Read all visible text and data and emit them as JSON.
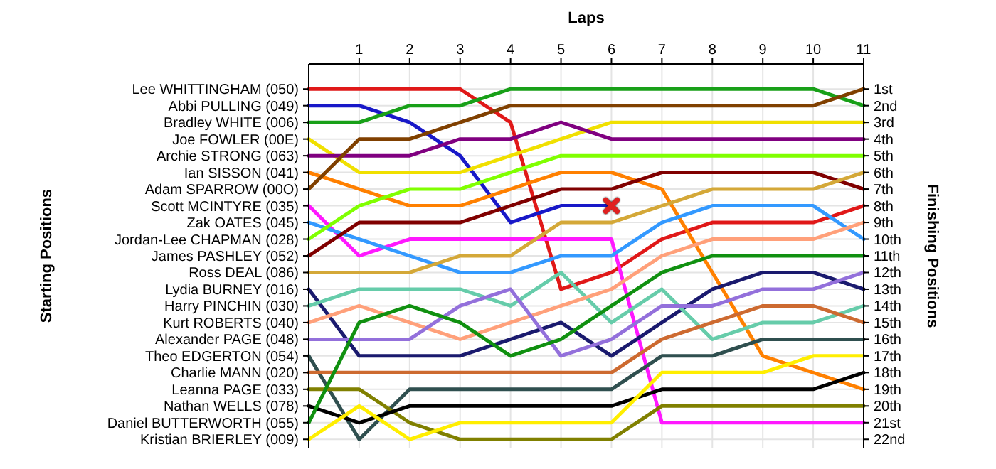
{
  "chart_data": {
    "type": "line",
    "xlabel": "Laps",
    "ylabel": "Finishing Positions",
    "x": [
      0,
      1,
      2,
      3,
      4,
      5,
      6,
      7,
      8,
      9,
      10,
      11
    ],
    "xlim": [
      0,
      11
    ],
    "xticks": [
      1,
      2,
      3,
      4,
      5,
      6,
      7,
      8,
      9,
      10,
      11
    ],
    "ylim": [
      22.5,
      -0.5
    ],
    "yticks": [
      {
        "value": 1,
        "label": "1st"
      },
      {
        "value": 2,
        "label": "2nd"
      },
      {
        "value": 3,
        "label": "3rd"
      },
      {
        "value": 4,
        "label": "4th"
      },
      {
        "value": 5,
        "label": "5th"
      },
      {
        "value": 6,
        "label": "6th"
      },
      {
        "value": 7,
        "label": "7th"
      },
      {
        "value": 8,
        "label": "8th"
      },
      {
        "value": 9,
        "label": "9th"
      },
      {
        "value": 10,
        "label": "10th"
      },
      {
        "value": 11,
        "label": "11th"
      },
      {
        "value": 12,
        "label": "12th"
      },
      {
        "value": 13,
        "label": "13th"
      },
      {
        "value": 14,
        "label": "14th"
      },
      {
        "value": 15,
        "label": "15th"
      },
      {
        "value": 16,
        "label": "16th"
      },
      {
        "value": 17,
        "label": "17th"
      },
      {
        "value": 18,
        "label": "18th"
      },
      {
        "value": 19,
        "label": "19th"
      },
      {
        "value": 20,
        "label": "20th"
      },
      {
        "value": 21,
        "label": "21st"
      },
      {
        "value": 22,
        "label": "22nd"
      }
    ],
    "annotations": [
      "Starting Positions",
      "Lee WHITTINGHAM (050)",
      "Abbi PULLING (049)",
      "Bradley WHITE (006)",
      "Joe FOWLER (00E)",
      "Archie STRONG (063)",
      "Ian SISSON (041)",
      "Adam SPARROW (00O)",
      "Scott MCINTYRE (035)",
      "Zak OATES (045)",
      "Jordan-Lee CHAPMAN (028)",
      "James PASHLEY (052)",
      "Ross DEAL (086)",
      "Lydia BURNEY (016)",
      "Harry PINCHIN (030)",
      "Kurt ROBERTS (040)",
      "Alexander PAGE (048)",
      "Theo EDGERTON (054)",
      "Charlie MANN (020)",
      "Leanna PAGE (033)",
      "Nathan WELLS (078)",
      "Daniel BUTTERWORTH (055)",
      "Kristian BRIERLEY (009)"
    ],
    "grid": true,
    "marker": "none",
    "line_style": "solid",
    "series": [
      {
        "color": "#e01818",
        "values": [
          1,
          1,
          1,
          1,
          3,
          13,
          12,
          10,
          9,
          9,
          9,
          8
        ]
      },
      {
        "color": "#1818c8",
        "values": [
          2,
          2,
          3,
          5,
          9,
          8,
          8,
          null,
          null,
          null,
          null,
          null
        ]
      },
      {
        "color": "#18a018",
        "values": [
          3,
          3,
          2,
          2,
          1,
          1,
          1,
          1,
          1,
          1,
          1,
          2
        ]
      },
      {
        "color": "#f0e000",
        "values": [
          4,
          6,
          6,
          6,
          5,
          4,
          3,
          3,
          3,
          3,
          3,
          3
        ]
      },
      {
        "color": "#800080",
        "values": [
          5,
          5,
          5,
          4,
          4,
          3,
          4,
          4,
          4,
          4,
          4,
          4
        ]
      },
      {
        "color": "#ff8000",
        "values": [
          6,
          7,
          8,
          8,
          7,
          6,
          6,
          7,
          12,
          17,
          18,
          19
        ]
      },
      {
        "color": "#804000",
        "values": [
          7,
          4,
          4,
          3,
          2,
          2,
          2,
          2,
          2,
          2,
          2,
          1
        ]
      },
      {
        "color": "#ff18ff",
        "values": [
          8,
          11,
          10,
          10,
          10,
          10,
          10,
          21,
          21,
          21,
          21,
          21
        ]
      },
      {
        "color": "#3399ff",
        "values": [
          9,
          10,
          11,
          12,
          12,
          11,
          11,
          9,
          8,
          8,
          8,
          10
        ]
      },
      {
        "color": "#80ff00",
        "values": [
          10,
          8,
          7,
          7,
          6,
          5,
          5,
          5,
          5,
          5,
          5,
          5
        ]
      },
      {
        "color": "#800000",
        "values": [
          11,
          9,
          9,
          9,
          8,
          7,
          7,
          6,
          6,
          6,
          6,
          7
        ]
      },
      {
        "color": "#d4a838",
        "values": [
          12,
          12,
          12,
          11,
          11,
          9,
          9,
          8,
          7,
          7,
          7,
          6
        ]
      },
      {
        "color": "#1a1a6e",
        "values": [
          13,
          17,
          17,
          17,
          16,
          15,
          17,
          15,
          13,
          12,
          12,
          13
        ]
      },
      {
        "color": "#66ccaa",
        "values": [
          14,
          13,
          13,
          13,
          14,
          12,
          15,
          13,
          16,
          15,
          15,
          14
        ]
      },
      {
        "color": "#ffa07a",
        "values": [
          15,
          14,
          15,
          16,
          15,
          14,
          13,
          11,
          10,
          10,
          10,
          9
        ]
      },
      {
        "color": "#9370db",
        "values": [
          16,
          16,
          16,
          14,
          13,
          17,
          16,
          14,
          14,
          13,
          13,
          12
        ]
      },
      {
        "color": "#2f4f4f",
        "values": [
          17,
          22,
          19,
          19,
          19,
          19,
          19,
          17,
          17,
          16,
          16,
          16
        ]
      },
      {
        "color": "#cd6a30",
        "values": [
          18,
          18,
          18,
          18,
          18,
          18,
          18,
          16,
          15,
          14,
          14,
          15
        ]
      },
      {
        "color": "#808000",
        "values": [
          19,
          19,
          21,
          22,
          22,
          22,
          22,
          20,
          20,
          20,
          20,
          20
        ]
      },
      {
        "color": "#000000",
        "values": [
          20,
          21,
          20,
          20,
          20,
          20,
          20,
          19,
          19,
          19,
          19,
          18
        ]
      },
      {
        "color": "#109010",
        "values": [
          21,
          15,
          14,
          15,
          17,
          16,
          14,
          12,
          11,
          11,
          11,
          11
        ]
      },
      {
        "color": "#ffee00",
        "values": [
          22,
          20,
          22,
          21,
          21,
          21,
          21,
          18,
          18,
          18,
          17,
          17
        ]
      },
      {
        "type": "scatter",
        "marker": "cross",
        "color": "#e02020",
        "x": [
          6
        ],
        "values": [
          8
        ]
      }
    ]
  }
}
